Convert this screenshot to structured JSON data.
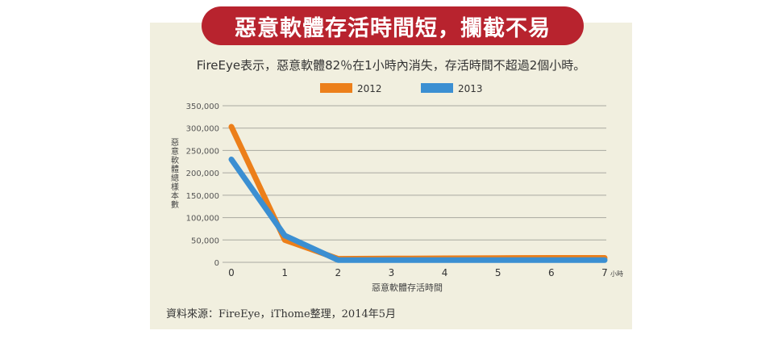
{
  "title": "惡意軟體存活時間短，攔截不易",
  "subtitle": "FireEye表示，惡意軟體82％在1小時內消失，存活時間不超過2個小時。",
  "source": "資料來源：FireEye，iThome整理，2014年5月",
  "colors": {
    "panel": "#f1efdf",
    "banner": "#b8232e",
    "s2012": "#ec7f1a",
    "s2013": "#3b8fd2"
  },
  "chart_data": {
    "type": "line",
    "x": [
      0,
      1,
      2,
      3,
      4,
      5,
      6,
      7
    ],
    "x_tick_labels": [
      "0",
      "1",
      "2",
      "3",
      "4",
      "5",
      "6",
      "7"
    ],
    "x_unit": "小時",
    "xlabel": "惡意軟體存活時間",
    "ylabel": "惡意軟體總樣本數",
    "y_tick_labels": [
      "0",
      "50,000",
      "100,000",
      "150,000",
      "200,000",
      "250,000",
      "300,000",
      "350,000"
    ],
    "ylim": [
      0,
      350000
    ],
    "grid": true,
    "legend_position": "top",
    "series": [
      {
        "name": "2012",
        "color": "#ec7f1a",
        "values": [
          303000,
          50000,
          8000,
          8500,
          9000,
          9500,
          10000,
          10000
        ]
      },
      {
        "name": "2013",
        "color": "#3b8fd2",
        "values": [
          230000,
          60000,
          5000,
          5000,
          5000,
          5000,
          5000,
          5000
        ]
      }
    ]
  }
}
